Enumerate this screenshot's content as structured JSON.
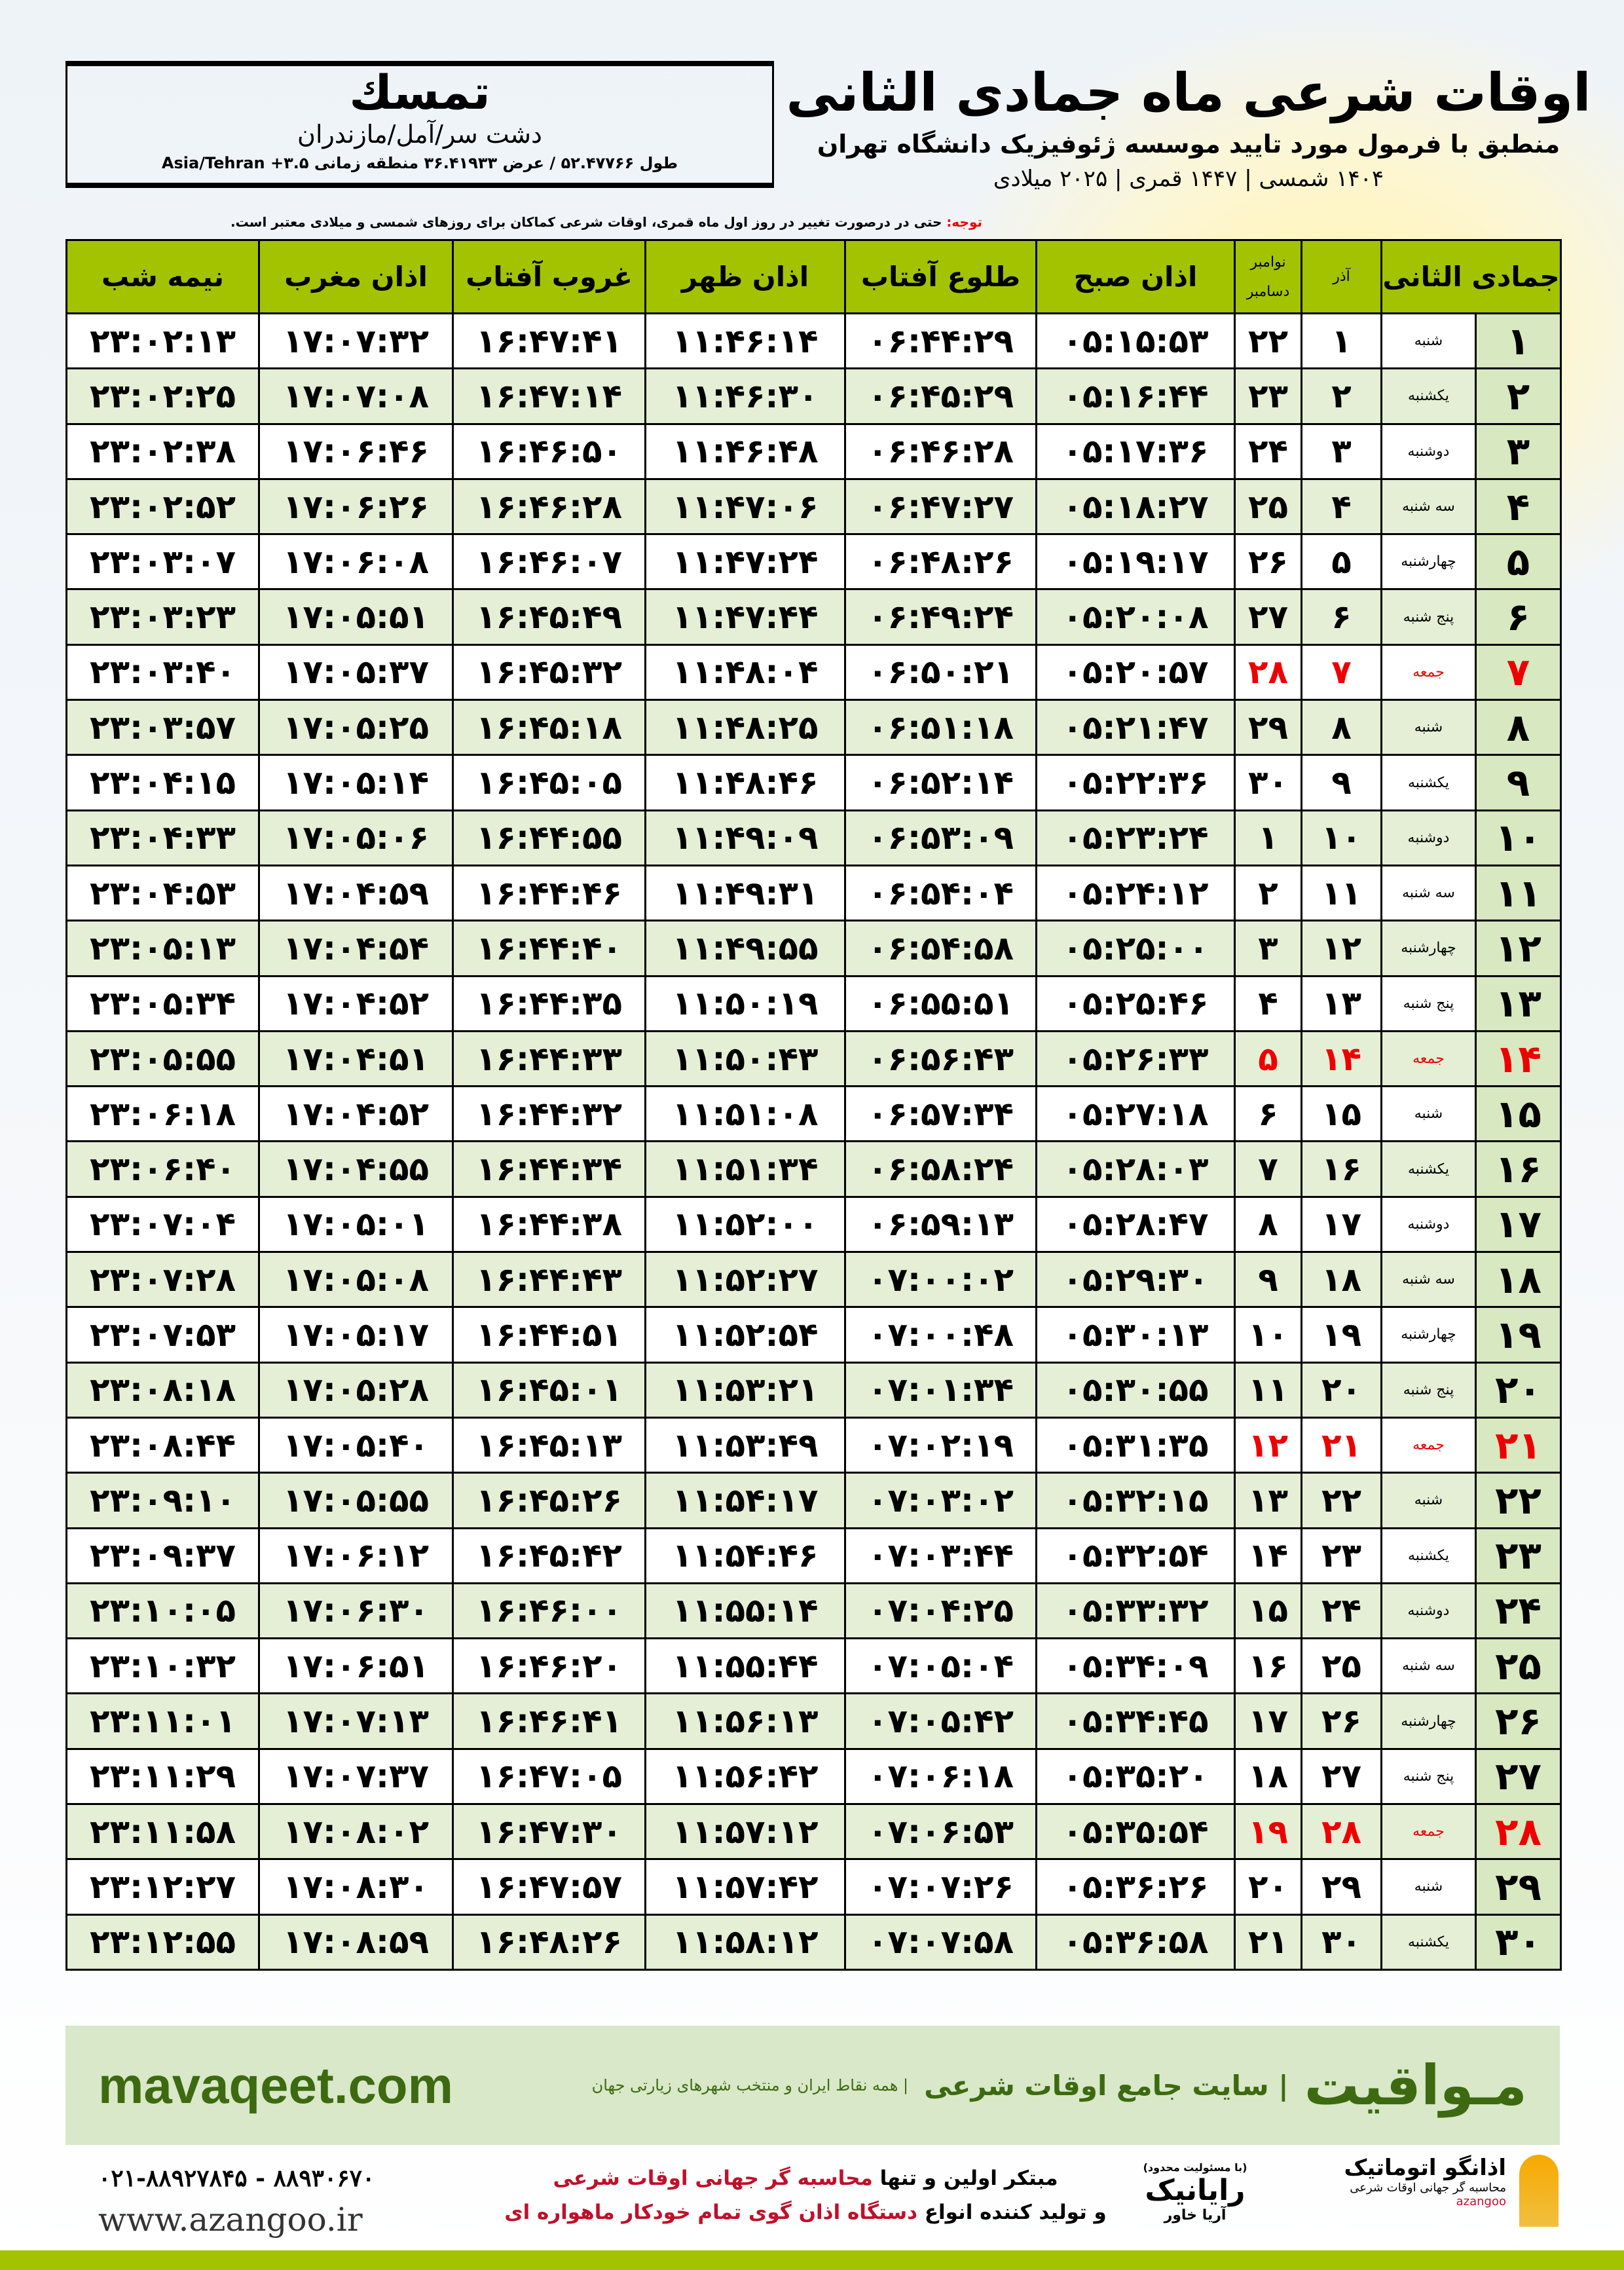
{
  "city": {
    "name": "تمسك",
    "region": "دشت سر/آمل/مازندران",
    "coords": "طول ۵۲.۴۷۷۶۶ / عرض ۳۶.۴۱۹۳۳ منطقه زمانی ۳.۵+ Asia/Tehran"
  },
  "title": {
    "main": "اوقات شرعی ماه جمادی الثانی",
    "sub": "منطبق با فرمول مورد تایید موسسه ژئوفیزیک دانشگاه تهران",
    "years": "۱۴۰۴ شمسی | ۱۴۴۷ قمری | ۲۰۲۵ میلادی"
  },
  "note": {
    "label": "توجه:",
    "text": " حتی در درصورت تغییر در روز اول ماه قمری، اوقات شرعی کماکان برای روزهای شمسی و میلادی معتبر است."
  },
  "table": {
    "headers": {
      "day": "جمادی الثانی",
      "azar": "آذر",
      "greg_top": "نوامبر",
      "greg_bottom": "دسامبر",
      "fajr": "اذان صبح",
      "sunrise": "طلوع آفتاب",
      "dhuhr": "اذان ظهر",
      "sunset": "غروب آفتاب",
      "maghrib": "اذان مغرب",
      "midnight": "نیمه شب"
    },
    "highlight_color": "#e00000",
    "rows": [
      [
        "۱",
        "شنبه",
        "۱",
        "۲۲",
        "۰۵:۱۵:۵۳",
        "۰۶:۴۴:۲۹",
        "۱۱:۴۶:۱۴",
        "۱۶:۴۷:۴۱",
        "۱۷:۰۷:۳۲",
        "۲۳:۰۲:۱۳"
      ],
      [
        "۲",
        "یکشنبه",
        "۲",
        "۲۳",
        "۰۵:۱۶:۴۴",
        "۰۶:۴۵:۲۹",
        "۱۱:۴۶:۳۰",
        "۱۶:۴۷:۱۴",
        "۱۷:۰۷:۰۸",
        "۲۳:۰۲:۲۵"
      ],
      [
        "۳",
        "دوشنبه",
        "۳",
        "۲۴",
        "۰۵:۱۷:۳۶",
        "۰۶:۴۶:۲۸",
        "۱۱:۴۶:۴۸",
        "۱۶:۴۶:۵۰",
        "۱۷:۰۶:۴۶",
        "۲۳:۰۲:۳۸"
      ],
      [
        "۴",
        "سه شنبه",
        "۴",
        "۲۵",
        "۰۵:۱۸:۲۷",
        "۰۶:۴۷:۲۷",
        "۱۱:۴۷:۰۶",
        "۱۶:۴۶:۲۸",
        "۱۷:۰۶:۲۶",
        "۲۳:۰۲:۵۲"
      ],
      [
        "۵",
        "چهارشنبه",
        "۵",
        "۲۶",
        "۰۵:۱۹:۱۷",
        "۰۶:۴۸:۲۶",
        "۱۱:۴۷:۲۴",
        "۱۶:۴۶:۰۷",
        "۱۷:۰۶:۰۸",
        "۲۳:۰۳:۰۷"
      ],
      [
        "۶",
        "پنج شنبه",
        "۶",
        "۲۷",
        "۰۵:۲۰:۰۸",
        "۰۶:۴۹:۲۴",
        "۱۱:۴۷:۴۴",
        "۱۶:۴۵:۴۹",
        "۱۷:۰۵:۵۱",
        "۲۳:۰۳:۲۳"
      ],
      [
        "۷",
        "جمعه",
        "۷",
        "۲۸",
        "۰۵:۲۰:۵۷",
        "۰۶:۵۰:۲۱",
        "۱۱:۴۸:۰۴",
        "۱۶:۴۵:۳۲",
        "۱۷:۰۵:۳۷",
        "۲۳:۰۳:۴۰"
      ],
      [
        "۸",
        "شنبه",
        "۸",
        "۲۹",
        "۰۵:۲۱:۴۷",
        "۰۶:۵۱:۱۸",
        "۱۱:۴۸:۲۵",
        "۱۶:۴۵:۱۸",
        "۱۷:۰۵:۲۵",
        "۲۳:۰۳:۵۷"
      ],
      [
        "۹",
        "یکشنبه",
        "۹",
        "۳۰",
        "۰۵:۲۲:۳۶",
        "۰۶:۵۲:۱۴",
        "۱۱:۴۸:۴۶",
        "۱۶:۴۵:۰۵",
        "۱۷:۰۵:۱۴",
        "۲۳:۰۴:۱۵"
      ],
      [
        "۱۰",
        "دوشنبه",
        "۱۰",
        "۱",
        "۰۵:۲۳:۲۴",
        "۰۶:۵۳:۰۹",
        "۱۱:۴۹:۰۹",
        "۱۶:۴۴:۵۵",
        "۱۷:۰۵:۰۶",
        "۲۳:۰۴:۳۳"
      ],
      [
        "۱۱",
        "سه شنبه",
        "۱۱",
        "۲",
        "۰۵:۲۴:۱۲",
        "۰۶:۵۴:۰۴",
        "۱۱:۴۹:۳۱",
        "۱۶:۴۴:۴۶",
        "۱۷:۰۴:۵۹",
        "۲۳:۰۴:۵۳"
      ],
      [
        "۱۲",
        "چهارشنبه",
        "۱۲",
        "۳",
        "۰۵:۲۵:۰۰",
        "۰۶:۵۴:۵۸",
        "۱۱:۴۹:۵۵",
        "۱۶:۴۴:۴۰",
        "۱۷:۰۴:۵۴",
        "۲۳:۰۵:۱۳"
      ],
      [
        "۱۳",
        "پنج شنبه",
        "۱۳",
        "۴",
        "۰۵:۲۵:۴۶",
        "۰۶:۵۵:۵۱",
        "۱۱:۵۰:۱۹",
        "۱۶:۴۴:۳۵",
        "۱۷:۰۴:۵۲",
        "۲۳:۰۵:۳۴"
      ],
      [
        "۱۴",
        "جمعه",
        "۱۴",
        "۵",
        "۰۵:۲۶:۳۳",
        "۰۶:۵۶:۴۳",
        "۱۱:۵۰:۴۳",
        "۱۶:۴۴:۳۳",
        "۱۷:۰۴:۵۱",
        "۲۳:۰۵:۵۵"
      ],
      [
        "۱۵",
        "شنبه",
        "۱۵",
        "۶",
        "۰۵:۲۷:۱۸",
        "۰۶:۵۷:۳۴",
        "۱۱:۵۱:۰۸",
        "۱۶:۴۴:۳۲",
        "۱۷:۰۴:۵۲",
        "۲۳:۰۶:۱۸"
      ],
      [
        "۱۶",
        "یکشنبه",
        "۱۶",
        "۷",
        "۰۵:۲۸:۰۳",
        "۰۶:۵۸:۲۴",
        "۱۱:۵۱:۳۴",
        "۱۶:۴۴:۳۴",
        "۱۷:۰۴:۵۵",
        "۲۳:۰۶:۴۰"
      ],
      [
        "۱۷",
        "دوشنبه",
        "۱۷",
        "۸",
        "۰۵:۲۸:۴۷",
        "۰۶:۵۹:۱۳",
        "۱۱:۵۲:۰۰",
        "۱۶:۴۴:۳۸",
        "۱۷:۰۵:۰۱",
        "۲۳:۰۷:۰۴"
      ],
      [
        "۱۸",
        "سه شنبه",
        "۱۸",
        "۹",
        "۰۵:۲۹:۳۰",
        "۰۷:۰۰:۰۲",
        "۱۱:۵۲:۲۷",
        "۱۶:۴۴:۴۳",
        "۱۷:۰۵:۰۸",
        "۲۳:۰۷:۲۸"
      ],
      [
        "۱۹",
        "چهارشنبه",
        "۱۹",
        "۱۰",
        "۰۵:۳۰:۱۳",
        "۰۷:۰۰:۴۸",
        "۱۱:۵۲:۵۴",
        "۱۶:۴۴:۵۱",
        "۱۷:۰۵:۱۷",
        "۲۳:۰۷:۵۳"
      ],
      [
        "۲۰",
        "پنج شنبه",
        "۲۰",
        "۱۱",
        "۰۵:۳۰:۵۵",
        "۰۷:۰۱:۳۴",
        "۱۱:۵۳:۲۱",
        "۱۶:۴۵:۰۱",
        "۱۷:۰۵:۲۸",
        "۲۳:۰۸:۱۸"
      ],
      [
        "۲۱",
        "جمعه",
        "۲۱",
        "۱۲",
        "۰۵:۳۱:۳۵",
        "۰۷:۰۲:۱۹",
        "۱۱:۵۳:۴۹",
        "۱۶:۴۵:۱۳",
        "۱۷:۰۵:۴۰",
        "۲۳:۰۸:۴۴"
      ],
      [
        "۲۲",
        "شنبه",
        "۲۲",
        "۱۳",
        "۰۵:۳۲:۱۵",
        "۰۷:۰۳:۰۲",
        "۱۱:۵۴:۱۷",
        "۱۶:۴۵:۲۶",
        "۱۷:۰۵:۵۵",
        "۲۳:۰۹:۱۰"
      ],
      [
        "۲۳",
        "یکشنبه",
        "۲۳",
        "۱۴",
        "۰۵:۳۲:۵۴",
        "۰۷:۰۳:۴۴",
        "۱۱:۵۴:۴۶",
        "۱۶:۴۵:۴۲",
        "۱۷:۰۶:۱۲",
        "۲۳:۰۹:۳۷"
      ],
      [
        "۲۴",
        "دوشنبه",
        "۲۴",
        "۱۵",
        "۰۵:۳۳:۳۲",
        "۰۷:۰۴:۲۵",
        "۱۱:۵۵:۱۴",
        "۱۶:۴۶:۰۰",
        "۱۷:۰۶:۳۰",
        "۲۳:۱۰:۰۵"
      ],
      [
        "۲۵",
        "سه شنبه",
        "۲۵",
        "۱۶",
        "۰۵:۳۴:۰۹",
        "۰۷:۰۵:۰۴",
        "۱۱:۵۵:۴۴",
        "۱۶:۴۶:۲۰",
        "۱۷:۰۶:۵۱",
        "۲۳:۱۰:۳۲"
      ],
      [
        "۲۶",
        "چهارشنبه",
        "۲۶",
        "۱۷",
        "۰۵:۳۴:۴۵",
        "۰۷:۰۵:۴۲",
        "۱۱:۵۶:۱۳",
        "۱۶:۴۶:۴۱",
        "۱۷:۰۷:۱۳",
        "۲۳:۱۱:۰۱"
      ],
      [
        "۲۷",
        "پنج شنبه",
        "۲۷",
        "۱۸",
        "۰۵:۳۵:۲۰",
        "۰۷:۰۶:۱۸",
        "۱۱:۵۶:۴۲",
        "۱۶:۴۷:۰۵",
        "۱۷:۰۷:۳۷",
        "۲۳:۱۱:۲۹"
      ],
      [
        "۲۸",
        "جمعه",
        "۲۸",
        "۱۹",
        "۰۵:۳۵:۵۴",
        "۰۷:۰۶:۵۳",
        "۱۱:۵۷:۱۲",
        "۱۶:۴۷:۳۰",
        "۱۷:۰۸:۰۲",
        "۲۳:۱۱:۵۸"
      ],
      [
        "۲۹",
        "شنبه",
        "۲۹",
        "۲۰",
        "۰۵:۳۶:۲۶",
        "۰۷:۰۷:۲۶",
        "۱۱:۵۷:۴۲",
        "۱۶:۴۷:۵۷",
        "۱۷:۰۸:۳۰",
        "۲۳:۱۲:۲۷"
      ],
      [
        "۳۰",
        "یکشنبه",
        "۳۰",
        "۲۱",
        "۰۵:۳۶:۵۸",
        "۰۷:۰۷:۵۸",
        "۱۱:۵۸:۱۲",
        "۱۶:۴۸:۲۶",
        "۱۷:۰۸:۵۹",
        "۲۳:۱۲:۵۵"
      ]
    ]
  },
  "banner": {
    "brand": "مـواقیت",
    "slogan": "| سایت جامع اوقات شرعی",
    "slogan2": "| همه نقاط ایران و منتخب شهرهای زیارتی جهان",
    "site": "mavaqeet.com",
    "color": "#3d6a10"
  },
  "footer": {
    "phone": "۰۲۱-۸۸۹۲۷۸۴۵ - ۸۸۹۳۰۶۷۰",
    "web": "www.azangoo.ir",
    "promo_line1_a": "مبتکر اولین و تنها ",
    "promo_line1_b": "محاسبه گر جهانی اوقات شرعی",
    "promo_line2_a": "و تولید کننده انواع ",
    "promo_line2_b": "دستگاه اذان گوی تمام خودکار ماهواره ای",
    "logo1_small": "(با مسئولیت محدود)",
    "logo1_name": "رایانیک",
    "logo1_sub": "آریا خاور",
    "logo2_name": "اذانگو اتوماتیک",
    "logo2_sub": "محاسبه گر جهانی اوقات شرعی",
    "logo2_latin": "azangoo"
  }
}
